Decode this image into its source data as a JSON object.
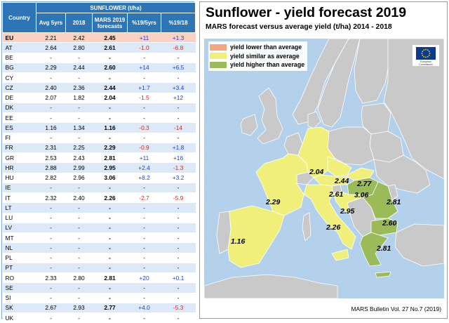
{
  "table": {
    "header_group": "SUNFLOWER (t/ha)",
    "header_country": "Country",
    "columns": [
      "Avg 5yrs",
      "2018",
      "MARS 2019 forecasts",
      "%19/5yrs",
      "%19/18"
    ],
    "rows": [
      {
        "country": "EU",
        "avg": "2.21",
        "y2018": "2.42",
        "f2019": "2.45",
        "p5": "+11",
        "p18": "+1.3",
        "hl": true
      },
      {
        "country": "AT",
        "avg": "2.64",
        "y2018": "2.80",
        "f2019": "2.61",
        "p5": "-1.0",
        "p18": "-6.8"
      },
      {
        "country": "BE",
        "avg": "-",
        "y2018": "-",
        "f2019": "-",
        "p5": "-",
        "p18": "-"
      },
      {
        "country": "BG",
        "avg": "2.29",
        "y2018": "2.44",
        "f2019": "2.60",
        "p5": "+14",
        "p18": "+6.5"
      },
      {
        "country": "CY",
        "avg": "-",
        "y2018": "-",
        "f2019": "-",
        "p5": "-",
        "p18": "-"
      },
      {
        "country": "CZ",
        "avg": "2.40",
        "y2018": "2.36",
        "f2019": "2.44",
        "p5": "+1.7",
        "p18": "+3.4"
      },
      {
        "country": "DE",
        "avg": "2.07",
        "y2018": "1.82",
        "f2019": "2.04",
        "p5": "-1.5",
        "p18": "+12"
      },
      {
        "country": "DK",
        "avg": "-",
        "y2018": "-",
        "f2019": "-",
        "p5": "-",
        "p18": "-"
      },
      {
        "country": "EE",
        "avg": "-",
        "y2018": "-",
        "f2019": "-",
        "p5": "-",
        "p18": "-"
      },
      {
        "country": "ES",
        "avg": "1.16",
        "y2018": "1.34",
        "f2019": "1.16",
        "p5": "-0.3",
        "p18": "-14"
      },
      {
        "country": "FI",
        "avg": "-",
        "y2018": "-",
        "f2019": "-",
        "p5": "-",
        "p18": "-"
      },
      {
        "country": "FR",
        "avg": "2.31",
        "y2018": "2.25",
        "f2019": "2.29",
        "p5": "-0.9",
        "p18": "+1.8"
      },
      {
        "country": "GR",
        "avg": "2.53",
        "y2018": "2.43",
        "f2019": "2.81",
        "p5": "+11",
        "p18": "+16"
      },
      {
        "country": "HR",
        "avg": "2.88",
        "y2018": "2.99",
        "f2019": "2.95",
        "p5": "+2.4",
        "p18": "-1.3"
      },
      {
        "country": "HU",
        "avg": "2.82",
        "y2018": "2.96",
        "f2019": "3.06",
        "p5": "+8.2",
        "p18": "+3.2"
      },
      {
        "country": "IE",
        "avg": "-",
        "y2018": "-",
        "f2019": "-",
        "p5": "-",
        "p18": "-"
      },
      {
        "country": "IT",
        "avg": "2.32",
        "y2018": "2.40",
        "f2019": "2.26",
        "p5": "-2.7",
        "p18": "-5.9"
      },
      {
        "country": "LT",
        "avg": "-",
        "y2018": "-",
        "f2019": "-",
        "p5": "-",
        "p18": "-"
      },
      {
        "country": "LU",
        "avg": "-",
        "y2018": "-",
        "f2019": "-",
        "p5": "-",
        "p18": "-"
      },
      {
        "country": "LV",
        "avg": "-",
        "y2018": "-",
        "f2019": "-",
        "p5": "-",
        "p18": "-"
      },
      {
        "country": "MT",
        "avg": "-",
        "y2018": "-",
        "f2019": "-",
        "p5": "-",
        "p18": "-"
      },
      {
        "country": "NL",
        "avg": "-",
        "y2018": "-",
        "f2019": "-",
        "p5": "-",
        "p18": "-"
      },
      {
        "country": "PL",
        "avg": "-",
        "y2018": "-",
        "f2019": "-",
        "p5": "-",
        "p18": "-"
      },
      {
        "country": "PT",
        "avg": "-",
        "y2018": "-",
        "f2019": "-",
        "p5": "-",
        "p18": "-"
      },
      {
        "country": "RO",
        "avg": "2.33",
        "y2018": "2.80",
        "f2019": "2.81",
        "p5": "+20",
        "p18": "+0.1"
      },
      {
        "country": "SE",
        "avg": "-",
        "y2018": "-",
        "f2019": "-",
        "p5": "-",
        "p18": "-"
      },
      {
        "country": "SI",
        "avg": "-",
        "y2018": "-",
        "f2019": "-",
        "p5": "-",
        "p18": "-"
      },
      {
        "country": "SK",
        "avg": "2.67",
        "y2018": "2.93",
        "f2019": "2.77",
        "p5": "+4.0",
        "p18": "-5.3"
      },
      {
        "country": "UK",
        "avg": "-",
        "y2018": "-",
        "f2019": "-",
        "p5": "-",
        "p18": "-"
      }
    ]
  },
  "map": {
    "title": "Sunflower - yield forecast 2019",
    "subtitle": "MARS forecast versus average yield (t/ha) 2014 - 2018",
    "legend": [
      {
        "label": "yield lower than average",
        "color": "#f4a582"
      },
      {
        "label": "yield similar as average",
        "color": "#f0ef7a"
      },
      {
        "label": "yield higher than average",
        "color": "#9bbb59"
      }
    ],
    "colors": {
      "sea": "#b4d1ec",
      "nodata": "#c9c9c9",
      "similar": "#f0ef7a",
      "higher": "#9bbb59",
      "border": "#ffffff"
    },
    "value_labels": [
      "2.04",
      "2.44",
      "2.77",
      "3.06",
      "2.81",
      "2.61",
      "2.29",
      "2.95",
      "2.60",
      "2.26",
      "1.16",
      "2.81"
    ],
    "logo_text": "European Commission",
    "footer": "MARS Bulletin Vol. 27 No.7 (2019)"
  }
}
